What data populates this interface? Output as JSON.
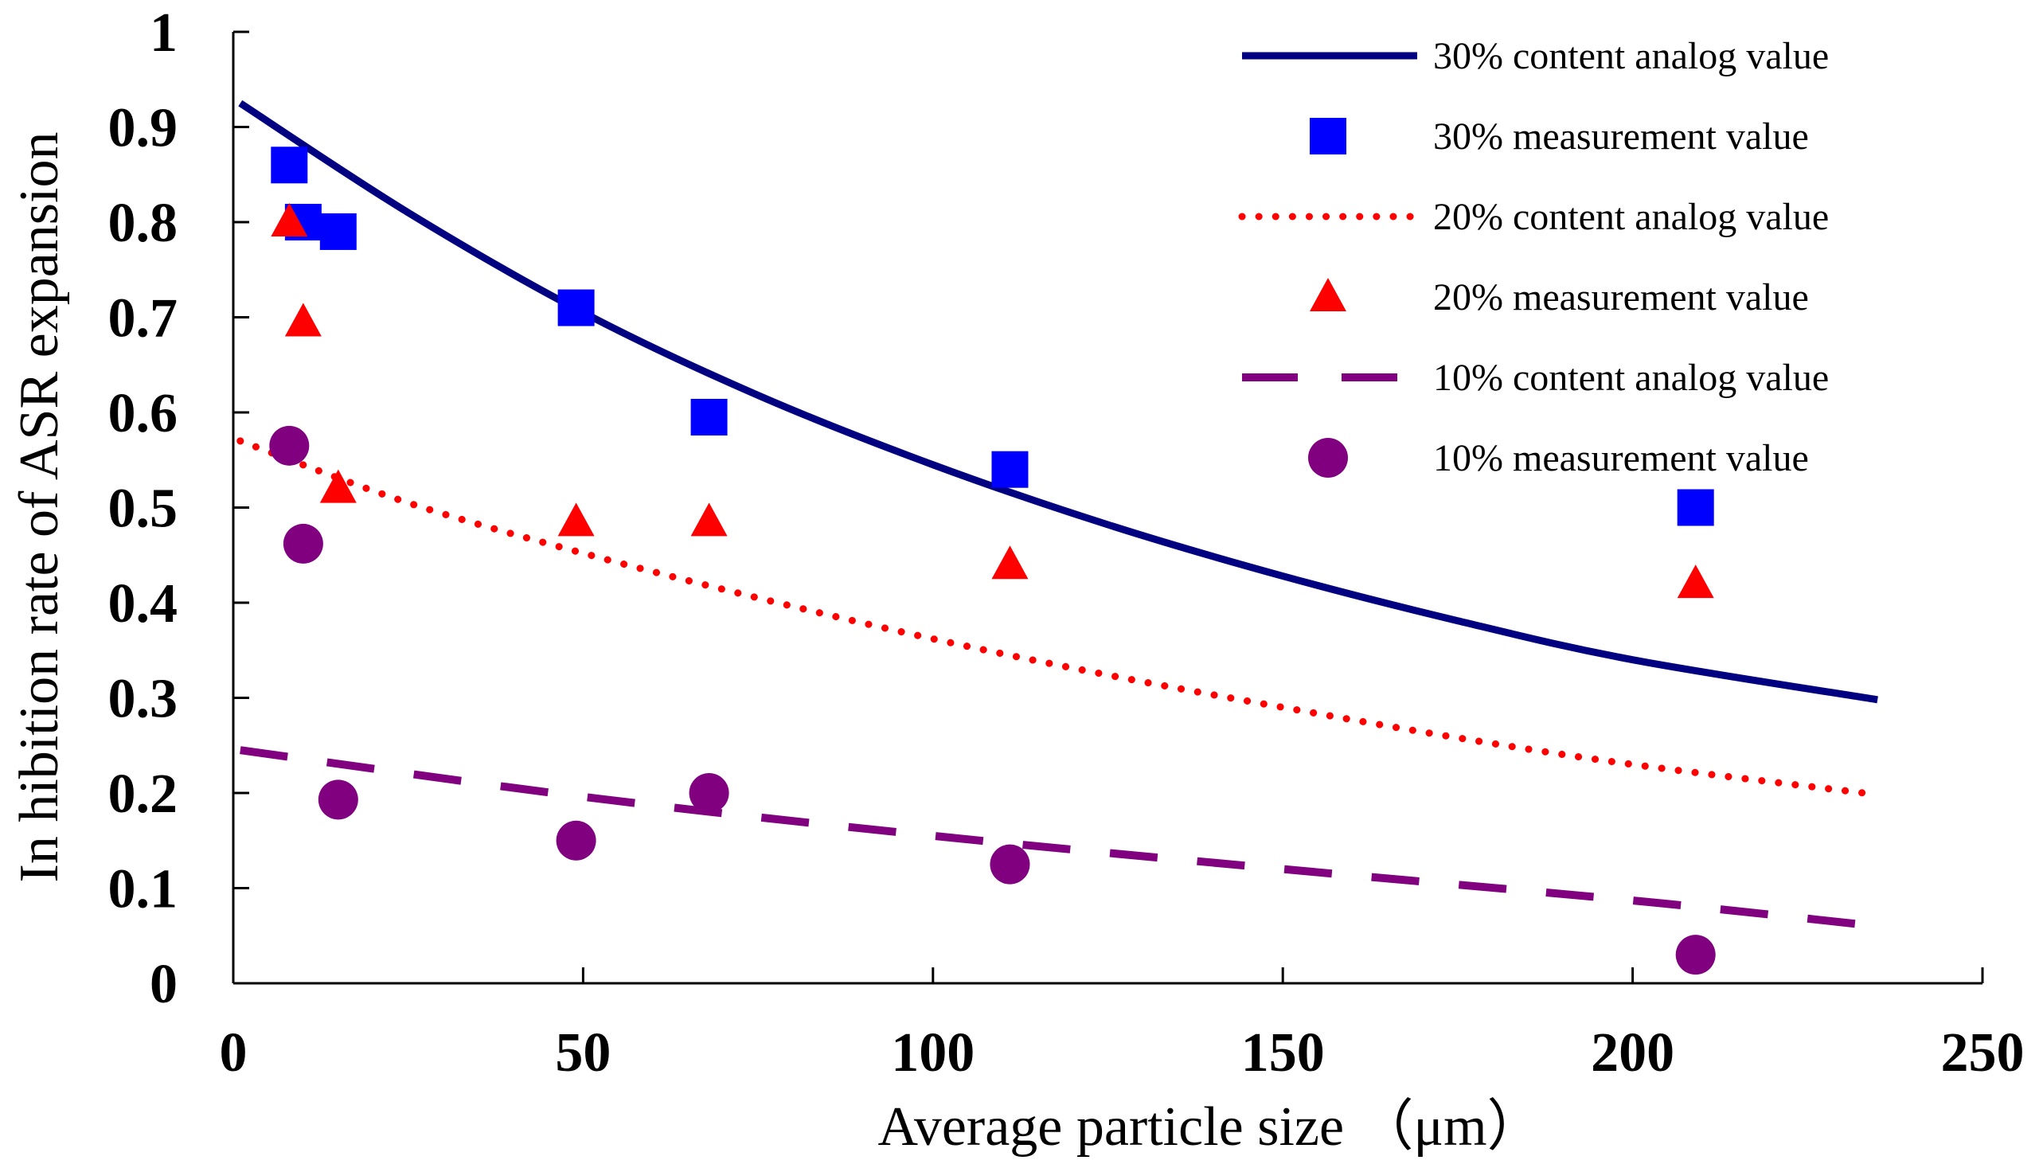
{
  "chart_data": {
    "type": "scatter",
    "title": "",
    "xlabel": "Average particle size （μm）",
    "ylabel": "In hibition rate of ASR expansion",
    "xlim": [
      0,
      250
    ],
    "ylim": [
      0,
      1
    ],
    "x_ticks": [
      0,
      50,
      100,
      150,
      200,
      250
    ],
    "x_tick_labels": [
      "0",
      "50",
      "100",
      "150",
      "200",
      "250"
    ],
    "y_ticks": [
      0,
      0.1,
      0.2,
      0.3,
      0.4,
      0.5,
      0.6,
      0.7,
      0.8,
      0.9,
      1
    ],
    "y_tick_labels": [
      "0",
      "0.1",
      "0.2",
      "0.3",
      "0.4",
      "0.5",
      "0.6",
      "0.7",
      "0.8",
      "0.9",
      "1"
    ],
    "grid": false,
    "legend_position": "top-right",
    "series": [
      {
        "id": "s30-analog",
        "name": "30% content analog value",
        "kind": "line",
        "style": "solid",
        "color": "#000080",
        "x": [
          1,
          25,
          50,
          75,
          100,
          125,
          150,
          175,
          200,
          235
        ],
        "y": [
          0.925,
          0.81,
          0.705,
          0.618,
          0.545,
          0.482,
          0.428,
          0.381,
          0.34,
          0.298
        ]
      },
      {
        "id": "s30-meas",
        "name": "30% measurement value",
        "kind": "marker",
        "marker": "square",
        "color": "#0000ff",
        "x": [
          8,
          10,
          15,
          49,
          68,
          111,
          209
        ],
        "y": [
          0.86,
          0.8,
          0.79,
          0.71,
          0.595,
          0.54,
          0.5
        ]
      },
      {
        "id": "s20-analog",
        "name": "20% content analog value",
        "kind": "line",
        "style": "dotted",
        "color": "#ff0000",
        "x": [
          1,
          25,
          50,
          75,
          100,
          125,
          150,
          175,
          200,
          233
        ],
        "y": [
          0.57,
          0.505,
          0.452,
          0.405,
          0.362,
          0.324,
          0.29,
          0.258,
          0.23,
          0.2
        ]
      },
      {
        "id": "s20-meas",
        "name": "20% measurement value",
        "kind": "marker",
        "marker": "triangle",
        "color": "#ff0000",
        "x": [
          8,
          10,
          15,
          49,
          68,
          111,
          209
        ],
        "y": [
          0.8,
          0.695,
          0.52,
          0.485,
          0.485,
          0.44,
          0.42
        ]
      },
      {
        "id": "s10-analog",
        "name": "10% content analog value",
        "kind": "line",
        "style": "dashed",
        "color": "#800080",
        "x": [
          1,
          50,
          100,
          150,
          200,
          235
        ],
        "y": [
          0.245,
          0.196,
          0.155,
          0.12,
          0.087,
          0.06
        ]
      },
      {
        "id": "s10-meas",
        "name": "10% measurement value",
        "kind": "marker",
        "marker": "circle",
        "color": "#800080",
        "x": [
          8,
          10,
          15,
          49,
          68,
          111,
          209
        ],
        "y": [
          0.565,
          0.462,
          0.193,
          0.15,
          0.2,
          0.125,
          0.03
        ]
      }
    ]
  }
}
